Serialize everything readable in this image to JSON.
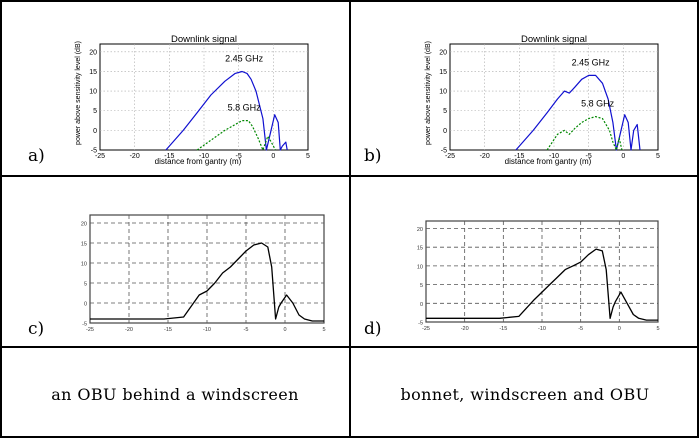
{
  "panels": [
    {
      "label": "a)",
      "chart_data": {
        "type": "line",
        "title": "Downlink signal",
        "xlabel": "distance from gantry (m)",
        "ylabel": "power above sensitivity level (dB)",
        "xlim": [
          -25,
          5
        ],
        "ylim": [
          -5,
          22
        ],
        "xticks": [
          "-25",
          "-20",
          "-15",
          "-10",
          "-5",
          "0",
          "5"
        ],
        "yticks": [
          "20",
          "15",
          "10",
          "5",
          "0",
          "-5"
        ],
        "grid": true,
        "series": [
          {
            "name": "2.45 GHz",
            "style": "solid",
            "color": "#1010d0",
            "x": [
              -15.5,
              -13,
              -11,
              -9,
              -7,
              -5.5,
              -4.5,
              -3.8,
              -3.2,
              -2.5,
              -1.5,
              -1.0,
              -0.6,
              0.2,
              0.7,
              1.0,
              1.3,
              1.8,
              2.0
            ],
            "y": [
              -5,
              0,
              4.5,
              9,
              12.5,
              14.5,
              15,
              14.5,
              13,
              10,
              3,
              -5,
              -2,
              4,
              2,
              -5,
              -4,
              -3,
              -5
            ]
          },
          {
            "name": "5.8 GHz",
            "style": "dashed",
            "color": "#008800",
            "x": [
              -11,
              -9,
              -7,
              -5.5,
              -4.5,
              -3.6,
              -3,
              -2.2,
              -1.5,
              -1.1,
              -0.8,
              -0.3,
              0.3
            ],
            "y": [
              -5,
              -2.5,
              0,
              1.5,
              2.5,
              2.5,
              1,
              -2,
              -5,
              -3,
              -1.5,
              -3,
              -5
            ]
          }
        ]
      }
    },
    {
      "label": "b)",
      "chart_data": {
        "type": "line",
        "title": "Downlink signal",
        "xlabel": "distance from gantry (m)",
        "ylabel": "power above sensitivity level (dB)",
        "xlim": [
          -25,
          5
        ],
        "ylim": [
          -5,
          22
        ],
        "xticks": [
          "-25",
          "-20",
          "-15",
          "-10",
          "-5",
          "0",
          "5"
        ],
        "yticks": [
          "20",
          "15",
          "10",
          "5",
          "0",
          "-5"
        ],
        "grid": true,
        "series": [
          {
            "name": "2.45 GHz",
            "style": "solid",
            "color": "#1010d0",
            "x": [
              -15.5,
              -13,
              -11,
              -9.5,
              -8.5,
              -7.8,
              -7,
              -6,
              -5,
              -4,
              -3,
              -2.2,
              -1.5,
              -1.0,
              -0.6,
              0.2,
              0.7,
              1.1,
              1.5,
              2.0,
              2.4
            ],
            "y": [
              -5,
              0,
              4.5,
              8,
              10,
              9.5,
              11,
              13,
              14,
              14,
              12,
              8,
              2,
              -5,
              -2,
              4,
              2,
              -5,
              0,
              1.5,
              -5
            ]
          },
          {
            "name": "5.8 GHz",
            "style": "dashed",
            "color": "#008800",
            "x": [
              -11,
              -9.5,
              -8.5,
              -7.8,
              -7,
              -6,
              -5,
              -4,
              -3,
              -2.5,
              -2,
              -1.5,
              -1.0,
              -0.6,
              -0.2
            ],
            "y": [
              -5,
              -1,
              0,
              -1,
              0.5,
              2,
              3,
              3.5,
              3,
              1.5,
              0,
              -3,
              -5,
              -2,
              -5
            ]
          }
        ]
      }
    },
    {
      "label": "c)",
      "chart_data": {
        "type": "line",
        "xlim": [
          -25,
          5
        ],
        "ylim": [
          -5,
          22
        ],
        "xticks": [
          "-25",
          "-20",
          "-15",
          "-10",
          "-5",
          "0",
          "5"
        ],
        "yticks": [
          "20",
          "15",
          "10",
          "5",
          "0",
          "-5"
        ],
        "grid": true,
        "series": [
          {
            "style": "solid",
            "color": "#000000",
            "x": [
              -25,
              -20,
              -15.5,
              -13,
              -11,
              -10,
              -9,
              -8,
              -7,
              -6,
              -5,
              -4,
              -3,
              -2.2,
              -1.7,
              -1.2,
              -0.8,
              -0.5,
              0.2,
              1,
              1.8,
              2.5,
              3.5,
              5
            ],
            "y": [
              -4,
              -4,
              -4,
              -3.5,
              2,
              3,
              5,
              7.5,
              9,
              11,
              13,
              14.5,
              15,
              14,
              9,
              -4,
              -1,
              0,
              2,
              0,
              -3,
              -4,
              -4.5,
              -4.5
            ]
          }
        ]
      }
    },
    {
      "label": "d)",
      "chart_data": {
        "type": "line",
        "xlim": [
          -25,
          5
        ],
        "ylim": [
          -5,
          22
        ],
        "xticks": [
          "-25",
          "-20",
          "-15",
          "-10",
          "-5",
          "0",
          "5"
        ],
        "yticks": [
          "20",
          "15",
          "10",
          "5",
          "0",
          "-5"
        ],
        "grid": true,
        "series": [
          {
            "style": "solid",
            "color": "#000000",
            "x": [
              -25,
              -20,
              -15.5,
              -13,
              -11,
              -10,
              -9,
              -8,
              -7,
              -6,
              -5,
              -4,
              -3,
              -2.2,
              -1.7,
              -1.2,
              -0.8,
              -0.5,
              0.2,
              1,
              1.8,
              2.5,
              3.5,
              5
            ],
            "y": [
              -4,
              -4,
              -4,
              -3.5,
              1,
              3,
              5,
              7,
              9,
              10,
              11,
              13,
              14.5,
              14,
              9,
              -4,
              -1,
              0.5,
              3,
              0,
              -3,
              -4,
              -4.5,
              -4.5
            ]
          }
        ]
      }
    }
  ],
  "captions": [
    "an OBU behind a windscreen",
    "bonnet, windscreen and OBU"
  ],
  "style": {
    "border_color": "#000000"
  }
}
